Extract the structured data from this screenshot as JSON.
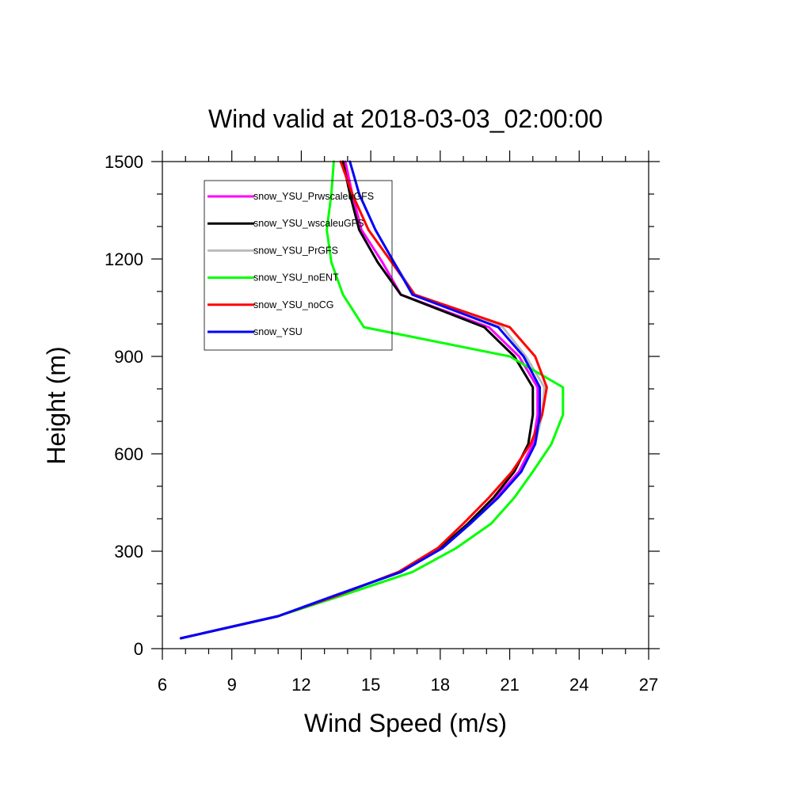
{
  "chart_data": {
    "type": "line",
    "title": "Wind valid at 2018-03-03_02:00:00",
    "xlabel": "Wind Speed (m/s)",
    "ylabel": "Height (m)",
    "xlim": [
      6,
      27
    ],
    "ylim": [
      0,
      1500
    ],
    "x_major_ticks": [
      6,
      9,
      12,
      15,
      18,
      21,
      24,
      27
    ],
    "x_minor_step": 1,
    "y_major_ticks": [
      0,
      300,
      600,
      900,
      1200,
      1500
    ],
    "y_minor_step": 100,
    "grid": false,
    "legend_position": "top-left",
    "series": [
      {
        "name": "snow_YSU_PrwscaleuGFS",
        "color": "#ff00ff",
        "points": [
          [
            6.8,
            32
          ],
          [
            11,
            100
          ],
          [
            13.5,
            165
          ],
          [
            16.3,
            236
          ],
          [
            18.1,
            310
          ],
          [
            19.3,
            385
          ],
          [
            20.4,
            465
          ],
          [
            21.4,
            545
          ],
          [
            22,
            630
          ],
          [
            22.2,
            720
          ],
          [
            22.2,
            805
          ],
          [
            21.4,
            900
          ],
          [
            20.1,
            990
          ],
          [
            16.3,
            1090
          ],
          [
            15.5,
            1190
          ],
          [
            14.6,
            1290
          ],
          [
            14.2,
            1400
          ],
          [
            13.9,
            1500
          ]
        ]
      },
      {
        "name": "snow_YSU_wscaleuGFS",
        "color": "#000000",
        "points": [
          [
            6.8,
            32
          ],
          [
            11,
            100
          ],
          [
            13.5,
            165
          ],
          [
            16.3,
            236
          ],
          [
            18,
            310
          ],
          [
            19.2,
            385
          ],
          [
            20.3,
            465
          ],
          [
            21.2,
            545
          ],
          [
            21.8,
            630
          ],
          [
            22,
            720
          ],
          [
            22,
            805
          ],
          [
            21.2,
            900
          ],
          [
            19.9,
            990
          ],
          [
            16.3,
            1090
          ],
          [
            15.3,
            1190
          ],
          [
            14.5,
            1290
          ],
          [
            14.1,
            1400
          ],
          [
            13.8,
            1500
          ]
        ]
      },
      {
        "name": "snow_YSU_PrGFS",
        "color": "#bbbbbb",
        "points": [
          [
            6.8,
            32
          ],
          [
            11,
            100
          ],
          [
            13.5,
            165
          ],
          [
            16.3,
            236
          ],
          [
            18.1,
            310
          ],
          [
            19.3,
            385
          ],
          [
            20.5,
            465
          ],
          [
            21.5,
            545
          ],
          [
            22.1,
            630
          ],
          [
            22.4,
            720
          ],
          [
            22.5,
            805
          ],
          [
            21.7,
            900
          ],
          [
            20.7,
            990
          ],
          [
            16.9,
            1090
          ],
          [
            16,
            1190
          ],
          [
            15.2,
            1290
          ],
          [
            14.5,
            1400
          ],
          [
            14.1,
            1500
          ]
        ]
      },
      {
        "name": "snow_YSU_noENT",
        "color": "#00ff00",
        "points": [
          [
            6.8,
            32
          ],
          [
            11,
            100
          ],
          [
            13.8,
            165
          ],
          [
            16.8,
            236
          ],
          [
            18.7,
            310
          ],
          [
            20.2,
            385
          ],
          [
            21.2,
            465
          ],
          [
            22,
            545
          ],
          [
            22.8,
            630
          ],
          [
            23.3,
            720
          ],
          [
            23.3,
            805
          ],
          [
            21,
            900
          ],
          [
            14.7,
            990
          ],
          [
            13.8,
            1090
          ],
          [
            13.3,
            1190
          ],
          [
            13.1,
            1290
          ],
          [
            13.3,
            1400
          ],
          [
            13.4,
            1500
          ]
        ]
      },
      {
        "name": "snow_YSU_noCG",
        "color": "#ff0000",
        "points": [
          [
            6.8,
            32
          ],
          [
            11,
            100
          ],
          [
            13.6,
            165
          ],
          [
            16.2,
            236
          ],
          [
            17.9,
            310
          ],
          [
            19,
            385
          ],
          [
            20.1,
            465
          ],
          [
            21.1,
            545
          ],
          [
            21.9,
            630
          ],
          [
            22.4,
            720
          ],
          [
            22.6,
            805
          ],
          [
            22.1,
            900
          ],
          [
            21,
            990
          ],
          [
            16.9,
            1090
          ],
          [
            15.9,
            1190
          ],
          [
            14.9,
            1290
          ],
          [
            14.2,
            1400
          ],
          [
            13.7,
            1500
          ]
        ]
      },
      {
        "name": "snow_YSU",
        "color": "#0000ff",
        "points": [
          [
            6.8,
            32
          ],
          [
            11,
            100
          ],
          [
            13.5,
            165
          ],
          [
            16.3,
            236
          ],
          [
            18.1,
            310
          ],
          [
            19.3,
            385
          ],
          [
            20.5,
            465
          ],
          [
            21.5,
            545
          ],
          [
            22.1,
            630
          ],
          [
            22.3,
            720
          ],
          [
            22.3,
            805
          ],
          [
            21.6,
            900
          ],
          [
            20.5,
            990
          ],
          [
            16.8,
            1090
          ],
          [
            16,
            1190
          ],
          [
            15.2,
            1290
          ],
          [
            14.5,
            1400
          ],
          [
            14.1,
            1500
          ]
        ]
      }
    ]
  }
}
